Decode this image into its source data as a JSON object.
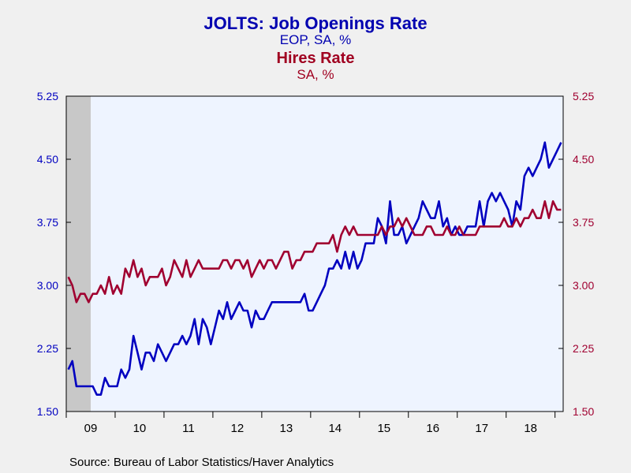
{
  "chart_data": {
    "type": "line",
    "title": "JOLTS: Job Openings Rate",
    "subtitle": "EOP, SA, %",
    "title2": "Hires Rate",
    "subtitle2": "SA, %",
    "source": "Source:  Bureau of Labor Statistics/Haver Analytics",
    "y_ticks": [
      "1.50",
      "2.25",
      "3.00",
      "3.75",
      "4.50",
      "5.25"
    ],
    "ylim": [
      1.5,
      5.25
    ],
    "x_tick_labels": [
      "09",
      "10",
      "11",
      "12",
      "13",
      "14",
      "15",
      "16",
      "17",
      "18"
    ],
    "xlim": [
      "2009-01",
      "2018-12"
    ],
    "recession_shading": [
      "2009-01",
      "2009-06"
    ],
    "grid": false,
    "colors": {
      "series1": "#0000c0",
      "series2": "#a00030",
      "recession": "#c8c8c8",
      "plot_bg": "#eef4ff"
    },
    "series": [
      {
        "name": "Job Openings Rate",
        "axis": "left",
        "values": [
          2.0,
          2.1,
          1.8,
          1.8,
          1.8,
          1.8,
          1.8,
          1.7,
          1.7,
          1.9,
          1.8,
          1.8,
          1.8,
          2.0,
          1.9,
          2.0,
          2.4,
          2.2,
          2.0,
          2.2,
          2.2,
          2.1,
          2.3,
          2.2,
          2.1,
          2.2,
          2.3,
          2.3,
          2.4,
          2.3,
          2.4,
          2.6,
          2.3,
          2.6,
          2.5,
          2.3,
          2.5,
          2.7,
          2.6,
          2.8,
          2.6,
          2.7,
          2.8,
          2.7,
          2.7,
          2.5,
          2.7,
          2.6,
          2.6,
          2.7,
          2.8,
          2.8,
          2.8,
          2.8,
          2.8,
          2.8,
          2.8,
          2.8,
          2.9,
          2.7,
          2.7,
          2.8,
          2.9,
          3.0,
          3.2,
          3.2,
          3.3,
          3.2,
          3.4,
          3.2,
          3.4,
          3.2,
          3.3,
          3.5,
          3.5,
          3.5,
          3.8,
          3.7,
          3.5,
          4.0,
          3.6,
          3.6,
          3.7,
          3.5,
          3.6,
          3.7,
          3.8,
          4.0,
          3.9,
          3.8,
          3.8,
          4.0,
          3.7,
          3.8,
          3.6,
          3.7,
          3.6,
          3.6,
          3.7,
          3.7,
          3.7,
          4.0,
          3.7,
          4.0,
          4.1,
          4.0,
          4.1,
          4.0,
          3.9,
          3.7,
          4.0,
          3.9,
          4.3,
          4.4,
          4.3,
          4.4,
          4.5,
          4.7,
          4.4,
          4.5,
          4.6,
          4.7
        ]
      },
      {
        "name": "Hires Rate",
        "axis": "right",
        "values": [
          3.1,
          3.0,
          2.8,
          2.9,
          2.9,
          2.8,
          2.9,
          2.9,
          3.0,
          2.9,
          3.1,
          2.9,
          3.0,
          2.9,
          3.2,
          3.1,
          3.3,
          3.1,
          3.2,
          3.0,
          3.1,
          3.1,
          3.1,
          3.2,
          3.0,
          3.1,
          3.3,
          3.2,
          3.1,
          3.3,
          3.1,
          3.2,
          3.3,
          3.2,
          3.2,
          3.2,
          3.2,
          3.2,
          3.3,
          3.3,
          3.2,
          3.3,
          3.3,
          3.2,
          3.3,
          3.1,
          3.2,
          3.3,
          3.2,
          3.3,
          3.3,
          3.2,
          3.3,
          3.4,
          3.4,
          3.2,
          3.3,
          3.3,
          3.4,
          3.4,
          3.4,
          3.5,
          3.5,
          3.5,
          3.5,
          3.6,
          3.4,
          3.6,
          3.7,
          3.6,
          3.7,
          3.6,
          3.6,
          3.6,
          3.6,
          3.6,
          3.6,
          3.7,
          3.6,
          3.7,
          3.7,
          3.8,
          3.7,
          3.8,
          3.7,
          3.6,
          3.6,
          3.6,
          3.7,
          3.7,
          3.6,
          3.6,
          3.6,
          3.7,
          3.6,
          3.6,
          3.7,
          3.6,
          3.6,
          3.6,
          3.6,
          3.7,
          3.7,
          3.7,
          3.7,
          3.7,
          3.7,
          3.8,
          3.7,
          3.7,
          3.8,
          3.7,
          3.8,
          3.8,
          3.9,
          3.8,
          3.8,
          4.0,
          3.8,
          4.0,
          3.9,
          3.9
        ]
      }
    ]
  }
}
